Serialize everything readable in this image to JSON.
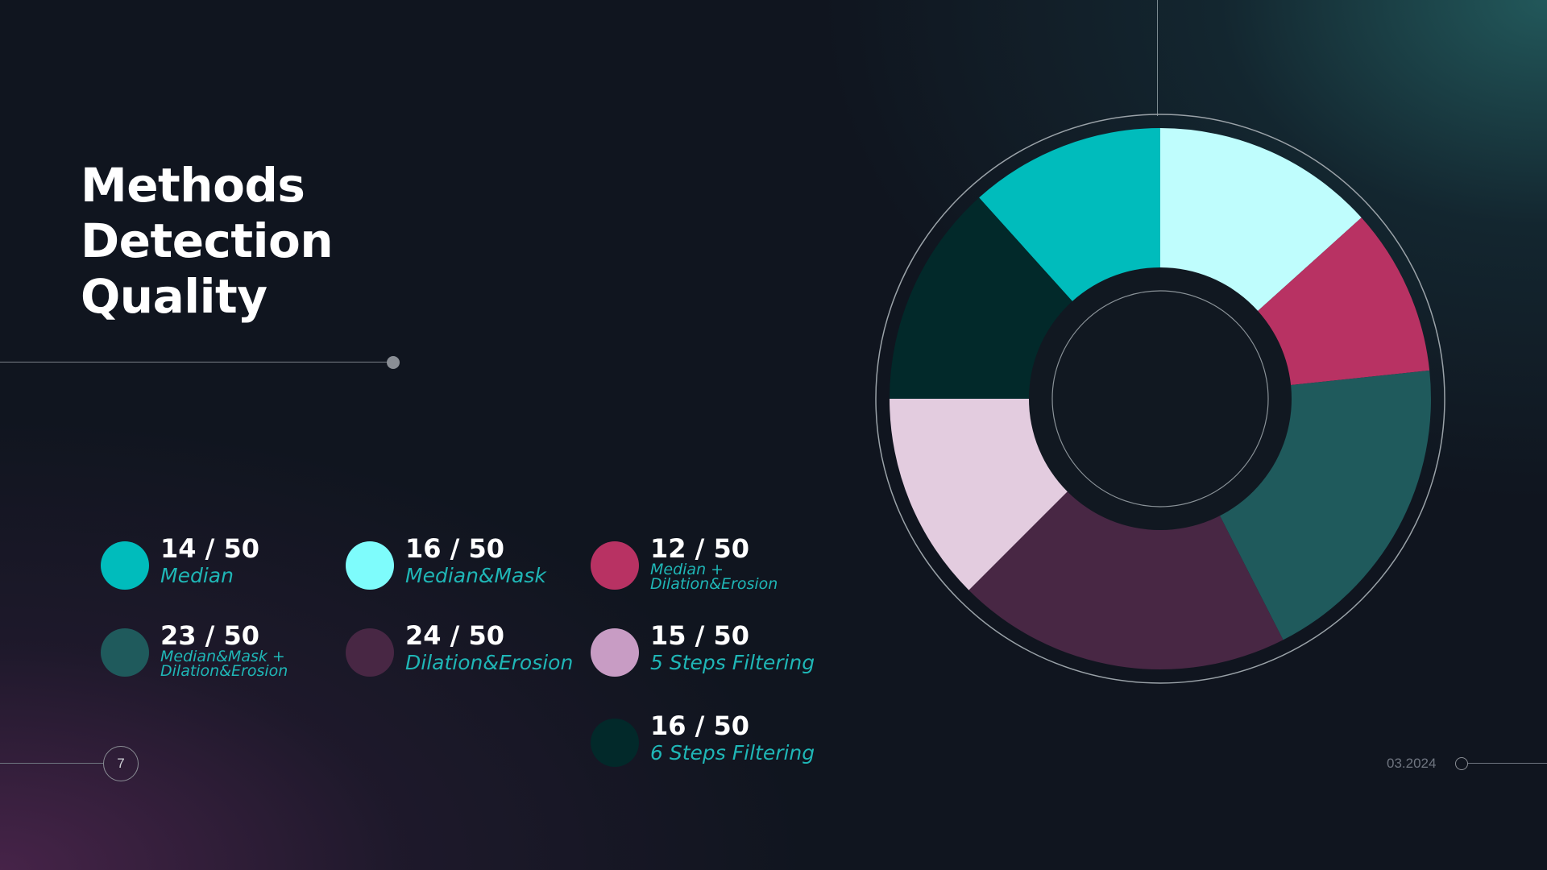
{
  "slide": {
    "title_lines": [
      "Methods",
      "Detection",
      "Quality"
    ],
    "page_number": "7",
    "date": "03.2024"
  },
  "legend": [
    {
      "value": "14 / 50",
      "label": "Median",
      "color": "#00bcbc"
    },
    {
      "value": "16 / 50",
      "label": "Median&Mask",
      "color": "#7efcfc"
    },
    {
      "value": "12 / 50",
      "label": "Median +\nDilation&Erosion",
      "color": "#b83263"
    },
    {
      "value": "23 / 50",
      "label": "Median&Mask +\nDilation&Erosion",
      "color": "#1f5a5c"
    },
    {
      "value": "24 / 50",
      "label": "Dilation&Erosion",
      "color": "#482744"
    },
    {
      "value": "15 / 50",
      "label": "5 Steps Filtering",
      "color": "#c89cc4"
    },
    {
      "value": "16 / 50",
      "label": "6 Steps Filtering",
      "color": "#02292a"
    }
  ],
  "chart_data": {
    "type": "pie",
    "style": "donut",
    "total": 50,
    "series": [
      {
        "name": "Median",
        "value": 14,
        "color": "#00bcbc"
      },
      {
        "name": "Median&Mask",
        "value": 16,
        "color": "#bffdfd"
      },
      {
        "name": "Median + Dilation&Erosion",
        "value": 12,
        "color": "#b83263"
      },
      {
        "name": "Median&Mask + Dilation&Erosion",
        "value": 23,
        "color": "#1f5a5c"
      },
      {
        "name": "Dilation&Erosion",
        "value": 24,
        "color": "#482744"
      },
      {
        "name": "5 Steps Filtering",
        "value": 15,
        "color": "#e3ccdf"
      },
      {
        "name": "6 Steps Filtering",
        "value": 16,
        "color": "#02292a"
      }
    ],
    "slice_order_clockwise_from_top": [
      "Median&Mask",
      "Median + Dilation&Erosion",
      "Median&Mask + Dilation&Erosion",
      "Dilation&Erosion",
      "5 Steps Filtering",
      "6 Steps Filtering",
      "Median"
    ],
    "legend_placement": "left"
  }
}
